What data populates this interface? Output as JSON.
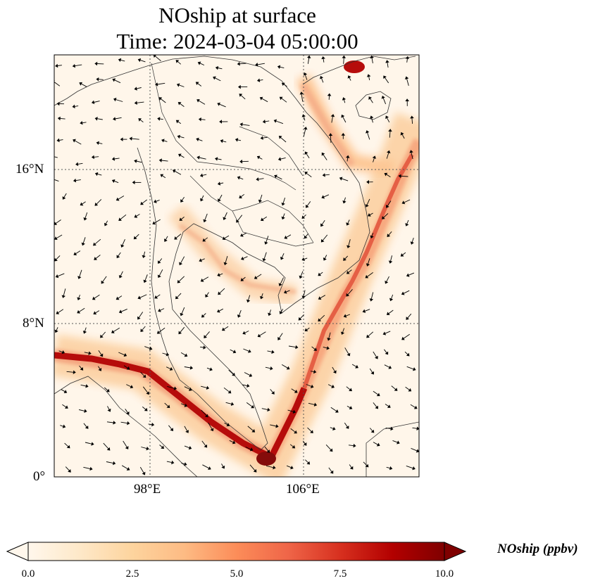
{
  "figure": {
    "title_line1": "NOship at surface",
    "title_line2": "Time: 2024-03-04 05:00:00"
  },
  "map": {
    "variable": "NOship",
    "lat_range": [
      0,
      22
    ],
    "lon_range": [
      93,
      112
    ],
    "lat_ticks": [
      "16°N",
      "8°N",
      "0°"
    ],
    "lon_ticks": [
      "98°E",
      "106°E"
    ],
    "gridlines": true,
    "features": [
      "coastlines",
      "country borders",
      "wind vectors"
    ],
    "ship_track_color_max": "#8b0000"
  },
  "colorbar": {
    "label": "NOship (ppbv)",
    "colormap": "OrRd",
    "colors": [
      "#fff7ec",
      "#fee8c8",
      "#fdd49e",
      "#fdbb84",
      "#fc8d59",
      "#ef6548",
      "#d7301f",
      "#b30000",
      "#7f0000"
    ],
    "range": [
      0.0,
      10.0
    ],
    "ticks": [
      "0.0",
      "2.5",
      "5.0",
      "7.5",
      "10.0"
    ],
    "extend": "both"
  }
}
